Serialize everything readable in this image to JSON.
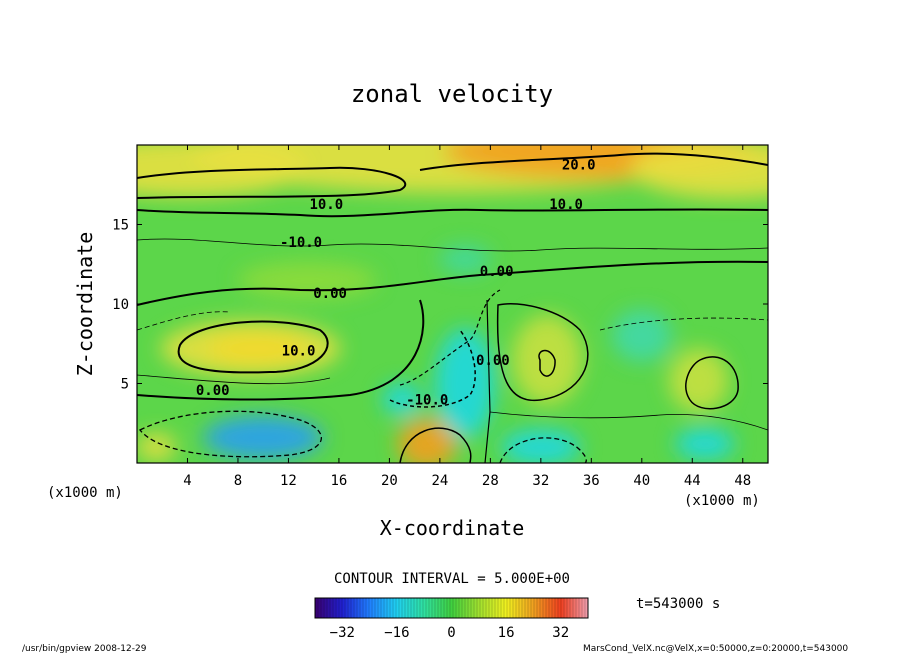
{
  "chart_data": {
    "type": "heatmap",
    "title": "zonal velocity",
    "xlabel": "X-coordinate",
    "ylabel": "Z-coordinate",
    "x_unit": "(x1000 m)",
    "z_unit": "(x1000 m)",
    "xlim": [
      0,
      50
    ],
    "ylim": [
      0,
      20
    ],
    "x_ticks": [
      4,
      8,
      12,
      16,
      20,
      24,
      28,
      32,
      36,
      40,
      44,
      48
    ],
    "y_ticks": [
      5,
      10,
      15
    ],
    "contour_interval_text": "CONTOUR INTERVAL = 5.000E+00",
    "contour_labels": [
      {
        "text": "20.0",
        "x": 35,
        "z": 18.6
      },
      {
        "text": "10.0",
        "x": 15,
        "z": 16.1
      },
      {
        "text": "10.0",
        "x": 34,
        "z": 16.1
      },
      {
        "text": "-10.0",
        "x": 13,
        "z": 13.7
      },
      {
        "text": "0.00",
        "x": 28.5,
        "z": 11.9
      },
      {
        "text": "0.00",
        "x": 15.3,
        "z": 10.5
      },
      {
        "text": "10.0",
        "x": 12.8,
        "z": 6.9
      },
      {
        "text": "0.00",
        "x": 6,
        "z": 4.4
      },
      {
        "text": "-10.0",
        "x": 23,
        "z": 3.8
      },
      {
        "text": "0.00",
        "x": 28.2,
        "z": 6.3
      }
    ],
    "colorbar": {
      "min": -40,
      "max": 40,
      "ticks": [
        -32,
        -16,
        0,
        16,
        32
      ],
      "colors": [
        "#3a0070",
        "#2020d0",
        "#2080ff",
        "#20d0f0",
        "#30e0a0",
        "#40d040",
        "#a0e030",
        "#f0f020",
        "#f0a020",
        "#f04020",
        "#f0a0b0"
      ]
    },
    "field_colors": {
      "background": "#5cd64a",
      "positive_high": "#f2a020",
      "positive_mid": "#e8e040",
      "negative_mid": "#20d8e0",
      "negative_high": "#2aa0f0"
    },
    "time_label": "t=543000 s",
    "footer_left": "/usr/bin/gpview   2008-12-29",
    "footer_right": "MarsCond_VelX.nc@VelX,x=0:50000,z=0:20000,t=543000"
  }
}
